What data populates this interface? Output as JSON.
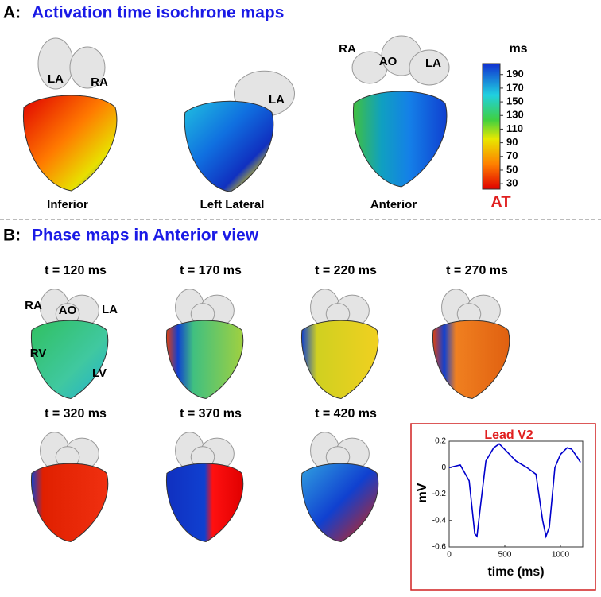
{
  "panel_a": {
    "letter": "A:",
    "title": "Activation time isochrone maps",
    "views": [
      {
        "label": "Inferior",
        "chambers": [
          "LA",
          "RA"
        ]
      },
      {
        "label": "Left Lateral",
        "chambers": [
          "LA"
        ]
      },
      {
        "label": "Anterior",
        "chambers": [
          "RA",
          "AO",
          "LA"
        ]
      }
    ],
    "colorbar": {
      "unit": "ms",
      "name": "AT",
      "ylim": [
        22,
        206
      ],
      "yticks": [
        190,
        170,
        150,
        130,
        110,
        90,
        70,
        50,
        30
      ]
    }
  },
  "panel_b": {
    "letter": "B:",
    "title": "Phase maps in Anterior view",
    "frames": [
      "t = 120 ms",
      "t = 170 ms",
      "t = 220 ms",
      "t = 270 ms",
      "t = 320 ms",
      "t = 370 ms",
      "t = 420 ms"
    ],
    "chambers": [
      "RA",
      "AO",
      "LA",
      "RV",
      "LV"
    ]
  },
  "chart_data": {
    "type": "line",
    "title": "Lead V2",
    "x_label": "time (ms)",
    "y_label": "mV",
    "x": [
      0,
      100,
      180,
      230,
      250,
      280,
      330,
      400,
      450,
      520,
      600,
      700,
      780,
      840,
      870,
      900,
      950,
      1000,
      1060,
      1100,
      1150,
      1180
    ],
    "values": [
      0.0,
      0.02,
      -0.1,
      -0.5,
      -0.52,
      -0.3,
      0.05,
      0.15,
      0.18,
      0.12,
      0.05,
      0.0,
      -0.05,
      -0.4,
      -0.52,
      -0.45,
      0.0,
      0.1,
      0.15,
      0.14,
      0.08,
      0.04
    ],
    "color": "#0000cc",
    "xlim": [
      0,
      1200
    ],
    "ylim": [
      -0.6,
      0.2
    ],
    "xticks": [
      0,
      500,
      1000
    ],
    "yticks": [
      0.2,
      0,
      -0.2,
      -0.4,
      -0.6
    ]
  }
}
